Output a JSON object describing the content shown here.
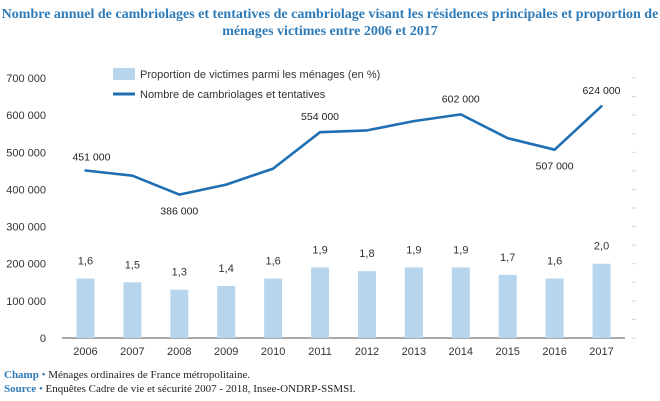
{
  "title_line1": "Nombre annuel de cambriolages et tentatives de cambriolage visant les résidences principales et proportion de",
  "title_line2": "ménages victimes entre 2006 et 2017",
  "footer": {
    "champ_label": "Champ",
    "champ_text": "Ménages ordinaires de France métropolitaine.",
    "source_label": "Source",
    "source_text": "Enquêtes Cadre de vie et sécurité 2007 - 2018, Insee-ONDRP-SSMSI."
  },
  "colors": {
    "bar": "#b7d6ee",
    "line": "#1f6fb2",
    "title": "#2e7bb8",
    "axis": "#333333"
  },
  "chart_data": {
    "type": "bar+line",
    "categories": [
      "2006",
      "2007",
      "2008",
      "2009",
      "2010",
      "2011",
      "2012",
      "2013",
      "2014",
      "2015",
      "2016",
      "2017"
    ],
    "left_axis": {
      "ticks": [
        "0",
        "100 000",
        "200 000",
        "300 000",
        "400 000",
        "500 000",
        "600 000",
        "700 000"
      ],
      "ylim": [
        0,
        700000
      ]
    },
    "right_axis": {
      "ylim": [
        0,
        7
      ]
    },
    "series": [
      {
        "name": "Proportion de victimes parmi les ménages (en %)",
        "type": "bar",
        "axis": "right",
        "values": [
          1.6,
          1.5,
          1.3,
          1.4,
          1.6,
          1.9,
          1.8,
          1.9,
          1.9,
          1.7,
          1.6,
          2.0
        ],
        "labels": [
          "1,6",
          "1,5",
          "1,3",
          "1,4",
          "1,6",
          "1,9",
          "1,8",
          "1,9",
          "1,9",
          "1,7",
          "1,6",
          "2,0"
        ]
      },
      {
        "name": "Nombre de cambriolages et tentatives",
        "type": "line",
        "axis": "left",
        "values": [
          451000,
          437000,
          386000,
          413000,
          456000,
          554000,
          559000,
          584000,
          602000,
          538000,
          507000,
          624000
        ],
        "labels": [
          "451 000",
          "",
          "386 000",
          "",
          "",
          "554 000",
          "",
          "",
          "602 000",
          "",
          "507 000",
          "624 000"
        ]
      }
    ],
    "legend_position": "top-left"
  }
}
